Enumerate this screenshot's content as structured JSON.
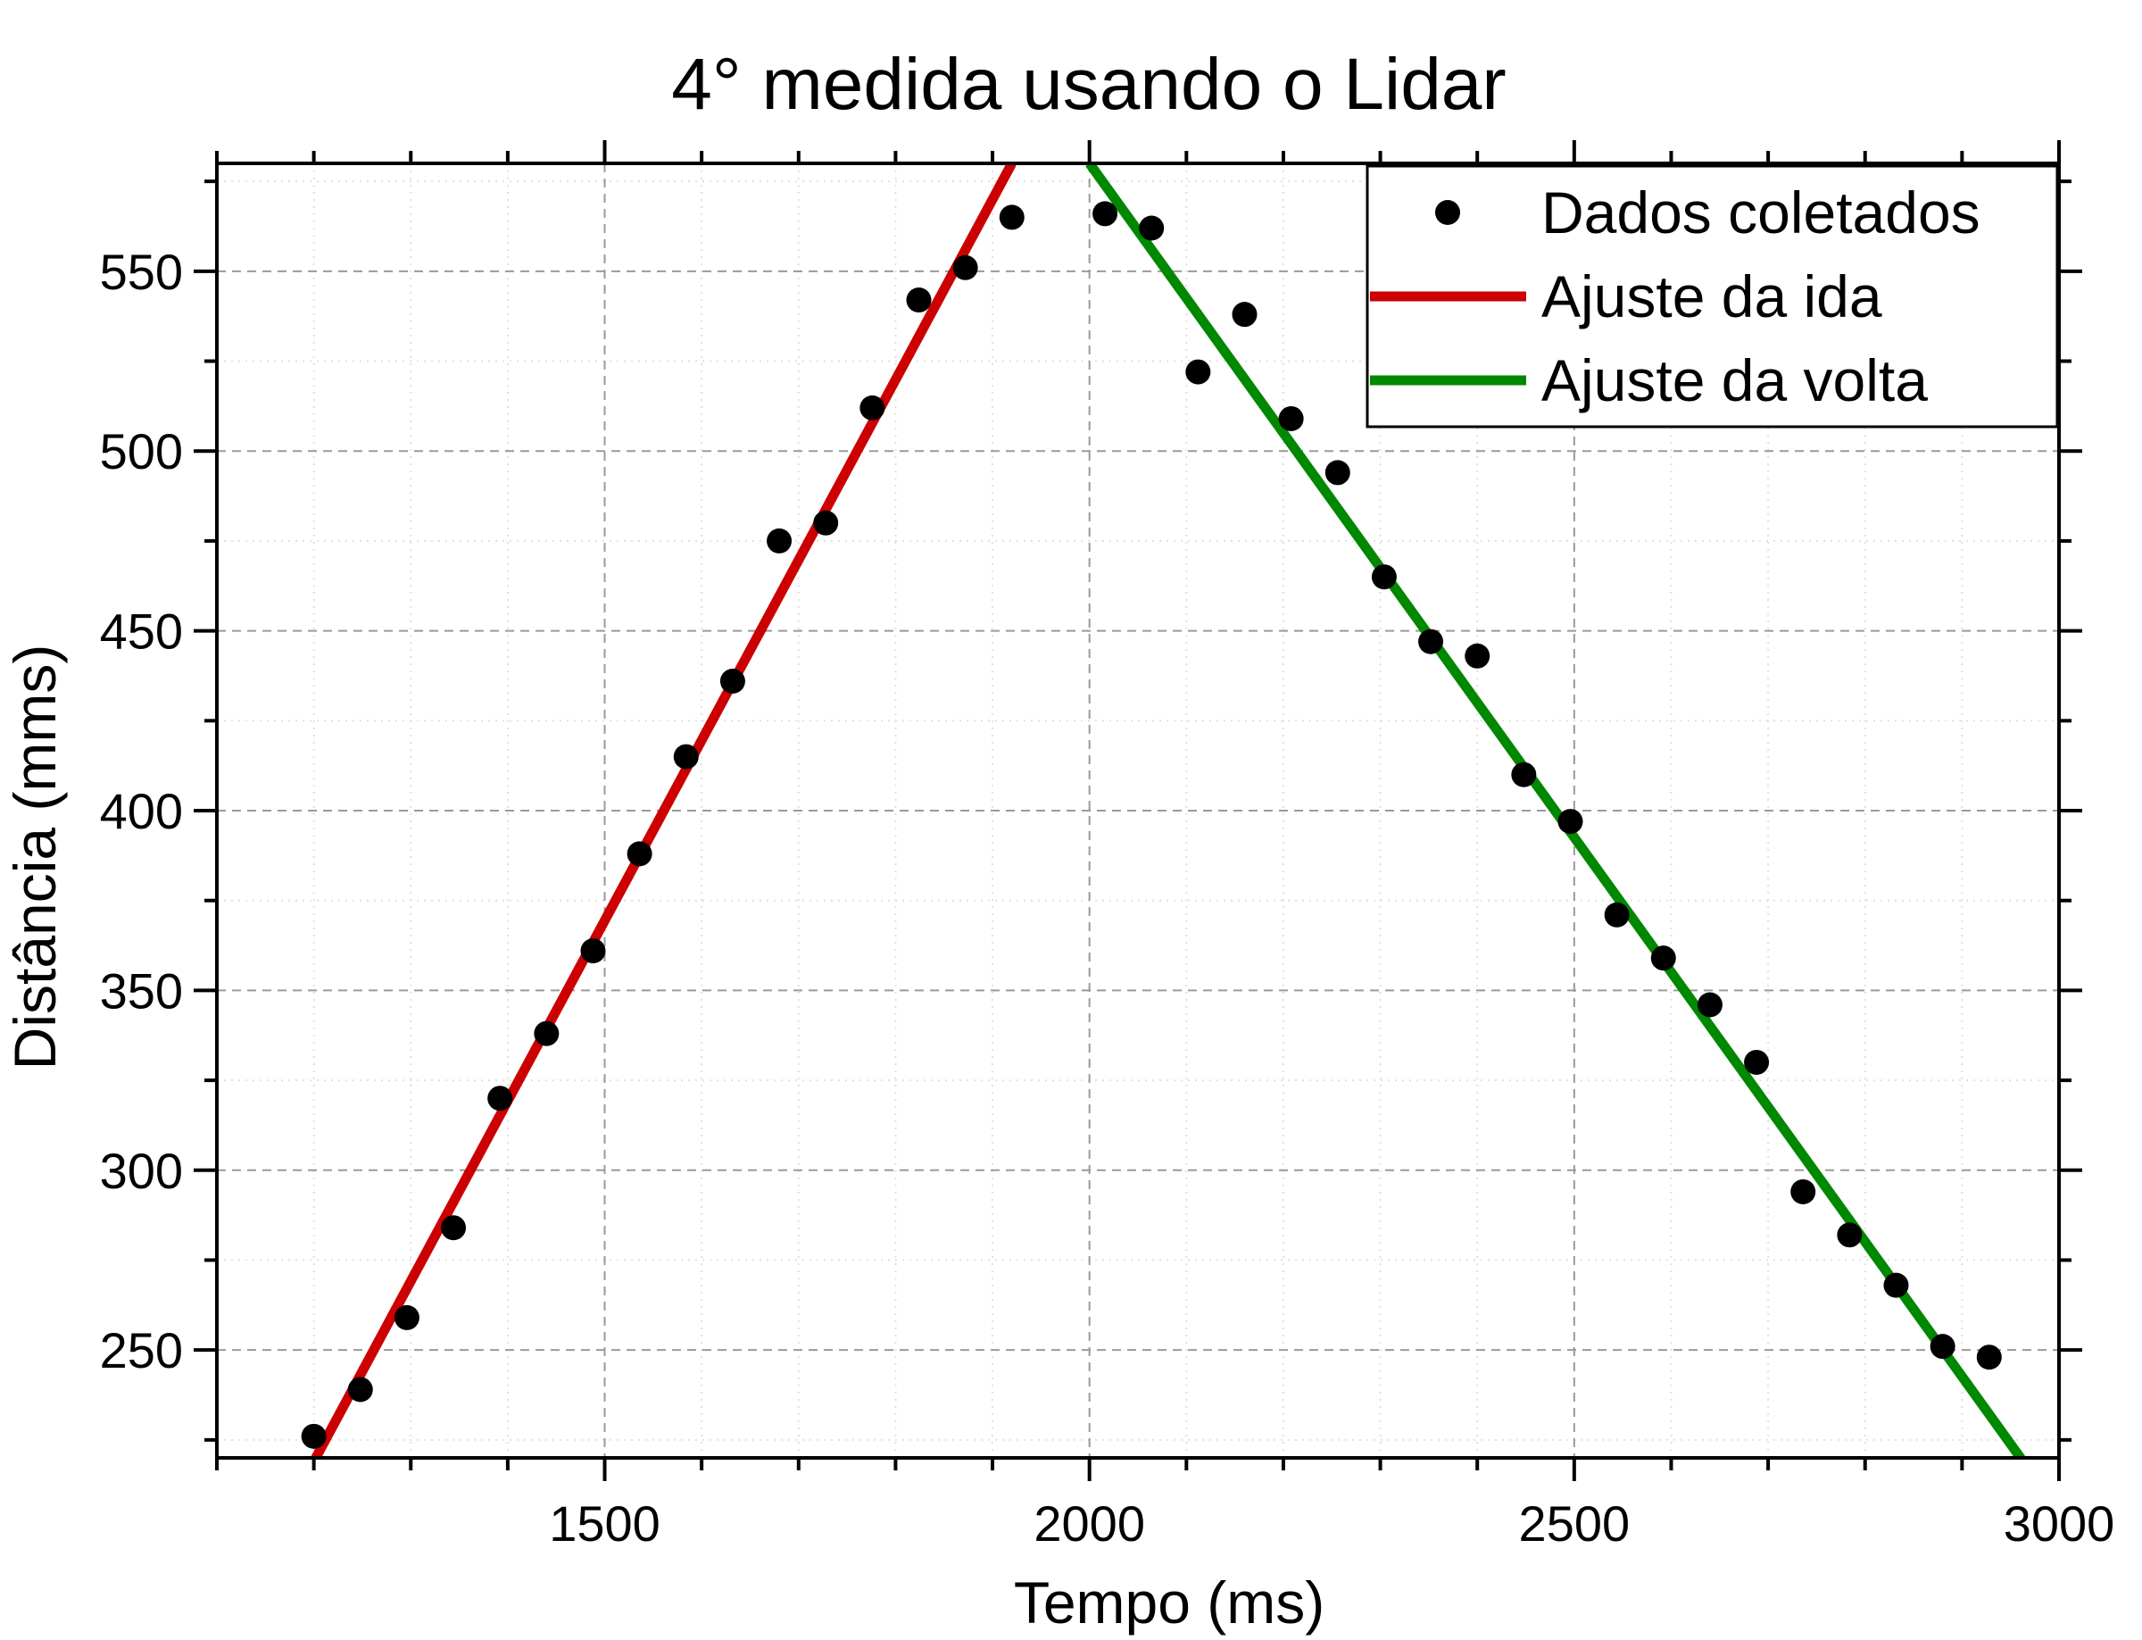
{
  "chart_data": {
    "type": "scatter",
    "title": "4° medida usando o Lidar",
    "xlabel": "Tempo (ms)",
    "ylabel": "Distância (mms)",
    "xlim": [
      1100,
      3000
    ],
    "ylim": [
      220,
      580
    ],
    "x_ticks": [
      1500,
      2000,
      2500,
      3000
    ],
    "y_ticks": [
      250,
      300,
      350,
      400,
      450,
      500,
      550
    ],
    "grid": true,
    "legend_position": "top-right",
    "series": [
      {
        "name": "Dados coletados",
        "kind": "scatter",
        "color": "#000000",
        "points": [
          [
            1200,
            226
          ],
          [
            1248,
            239
          ],
          [
            1296,
            259
          ],
          [
            1344,
            284
          ],
          [
            1392,
            320
          ],
          [
            1440,
            338
          ],
          [
            1488,
            361
          ],
          [
            1536,
            388
          ],
          [
            1584,
            415
          ],
          [
            1632,
            436
          ],
          [
            1680,
            475
          ],
          [
            1728,
            480
          ],
          [
            1776,
            512
          ],
          [
            1824,
            542
          ],
          [
            1872,
            551
          ],
          [
            1920,
            565
          ],
          [
            2016,
            566
          ],
          [
            2064,
            562
          ],
          [
            2112,
            522
          ],
          [
            2160,
            538
          ],
          [
            2208,
            509
          ],
          [
            2256,
            494
          ],
          [
            2304,
            465
          ],
          [
            2352,
            447
          ],
          [
            2400,
            443
          ],
          [
            2448,
            410
          ],
          [
            2496,
            397
          ],
          [
            2544,
            371
          ],
          [
            2592,
            359
          ],
          [
            2640,
            346
          ],
          [
            2688,
            330
          ],
          [
            2736,
            294
          ],
          [
            2784,
            282
          ],
          [
            2832,
            268
          ],
          [
            2880,
            251
          ],
          [
            2928,
            248
          ]
        ]
      },
      {
        "name": "Ajuste da ida",
        "kind": "line",
        "color": "#cc0000",
        "points": [
          [
            1200,
            219
          ],
          [
            1920,
            580
          ]
        ]
      },
      {
        "name": "Ajuste da volta",
        "kind": "line",
        "color": "#008800",
        "points": [
          [
            2000,
            580
          ],
          [
            2963,
            219
          ]
        ]
      }
    ]
  }
}
